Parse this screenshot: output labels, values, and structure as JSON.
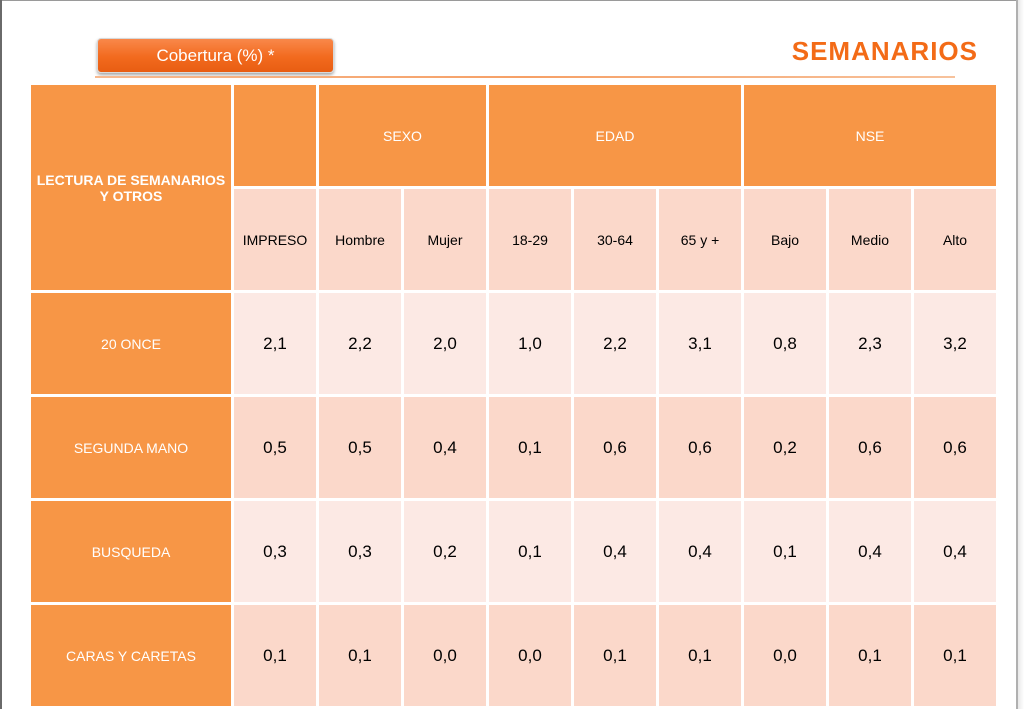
{
  "badge": {
    "label": "Cobertura (%) *"
  },
  "title": "SEMANARIOS",
  "stray_mark": ")",
  "table": {
    "corner": "LECTURA DE SEMANARIOS Y OTROS",
    "groups": [
      "SEXO",
      "EDAD",
      "NSE"
    ],
    "subheaders": [
      "IMPRESO",
      "Hombre",
      "Mujer",
      "18-29",
      "30-64",
      "65 y +",
      "Bajo",
      "Medio",
      "Alto"
    ],
    "rows": [
      {
        "label": "20 ONCE",
        "values": [
          "2,1",
          "2,2",
          "2,0",
          "1,0",
          "2,2",
          "3,1",
          "0,8",
          "2,3",
          "3,2"
        ]
      },
      {
        "label": "SEGUNDA MANO",
        "values": [
          "0,5",
          "0,5",
          "0,4",
          "0,1",
          "0,6",
          "0,6",
          "0,2",
          "0,6",
          "0,6"
        ]
      },
      {
        "label": "BUSQUEDA",
        "values": [
          "0,3",
          "0,3",
          "0,2",
          "0,1",
          "0,4",
          "0,4",
          "0,1",
          "0,4",
          "0,4"
        ]
      },
      {
        "label": "CARAS Y CARETAS",
        "values": [
          "0,1",
          "0,1",
          "0,0",
          "0,0",
          "0,1",
          "0,1",
          "0,0",
          "0,1",
          "0,1"
        ]
      }
    ]
  },
  "colors": {
    "accent_orange": "#f36b17",
    "header_orange": "#f79646",
    "cell_light": "#fce9e4",
    "cell_medium": "#fbd8ca"
  }
}
